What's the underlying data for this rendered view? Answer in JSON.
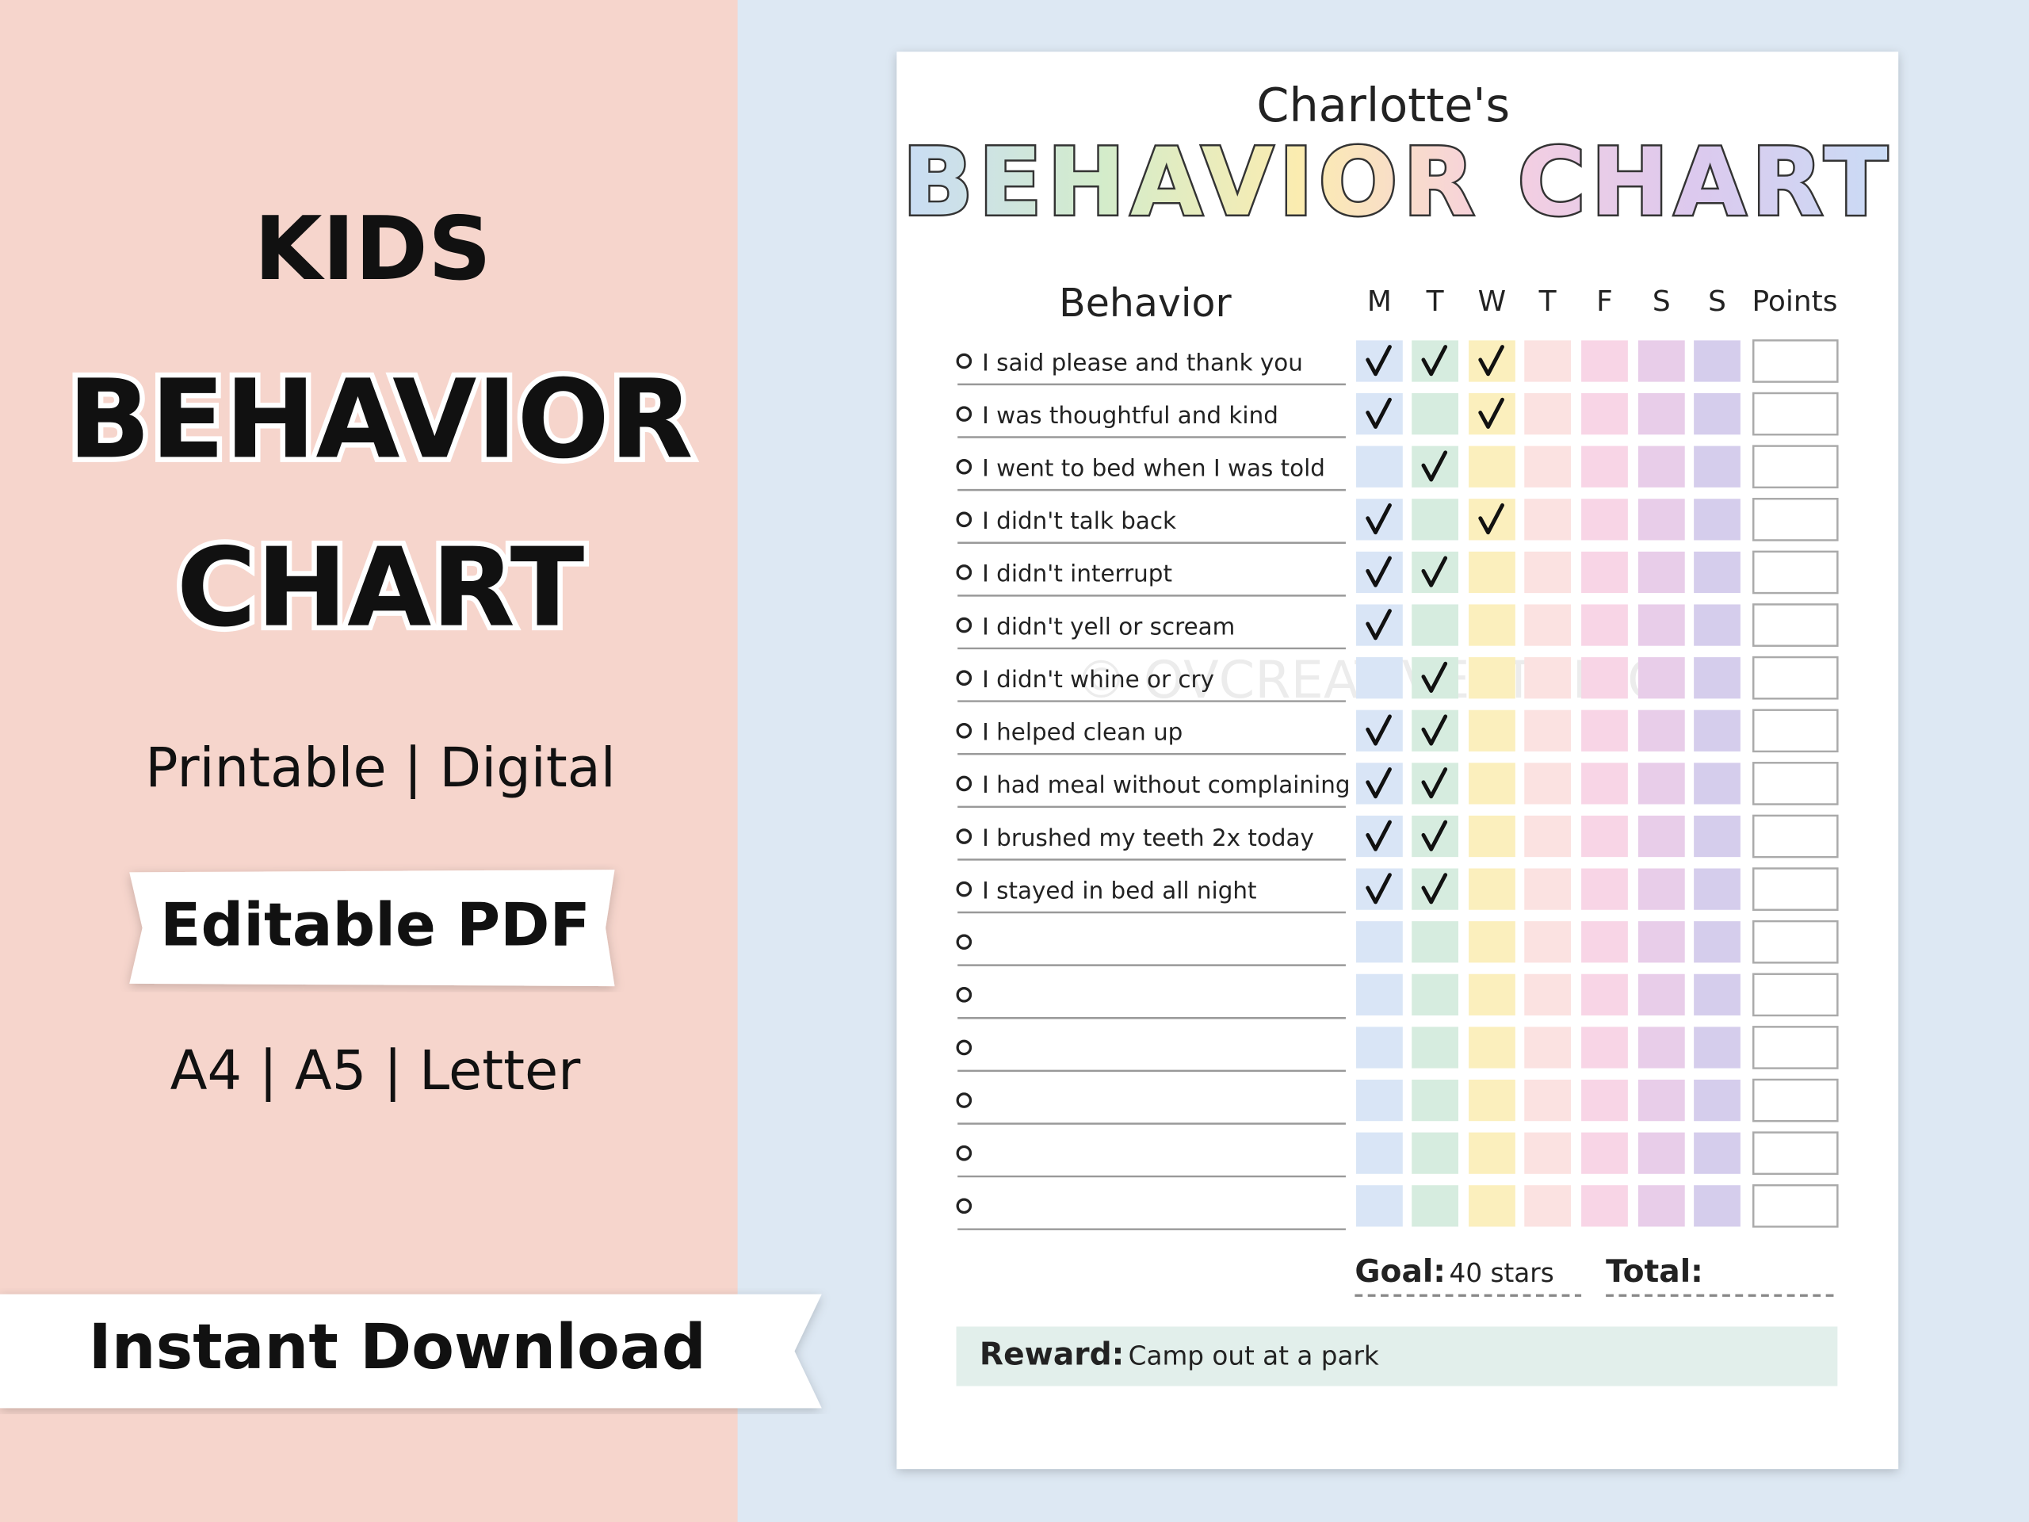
{
  "left_panel": {
    "kicker": "KIDS",
    "title_lines": [
      "BEHAVIOR",
      "CHART"
    ],
    "formats": "Printable | Digital",
    "badge": "Editable PDF",
    "sizes": "A4 | A5 | Letter",
    "banner": "Instant Download"
  },
  "chart_sheet": {
    "owner": "Charlotte's",
    "title": "BEHAVIOR CHART",
    "behavior_header": "Behavior",
    "days": [
      "M",
      "T",
      "W",
      "T",
      "F",
      "S",
      "S"
    ],
    "day_colors": [
      "#d9e5f6",
      "#d6ecdf",
      "#fbefbd",
      "#fbe2e1",
      "#f8d5e6",
      "#e8cde9",
      "#d5cdec"
    ],
    "points_header": "Points",
    "rows": [
      {
        "label": "I said please and thank you",
        "checks": [
          true,
          true,
          true,
          false,
          false,
          false,
          false
        ]
      },
      {
        "label": "I was thoughtful and kind",
        "checks": [
          true,
          false,
          true,
          false,
          false,
          false,
          false
        ]
      },
      {
        "label": "I went to bed when I was told",
        "checks": [
          false,
          true,
          false,
          false,
          false,
          false,
          false
        ]
      },
      {
        "label": "I didn't talk back",
        "checks": [
          true,
          false,
          true,
          false,
          false,
          false,
          false
        ]
      },
      {
        "label": "I didn't interrupt",
        "checks": [
          true,
          true,
          false,
          false,
          false,
          false,
          false
        ]
      },
      {
        "label": "I didn't yell or scream",
        "checks": [
          true,
          false,
          false,
          false,
          false,
          false,
          false
        ]
      },
      {
        "label": "I didn't whine or cry",
        "checks": [
          false,
          true,
          false,
          false,
          false,
          false,
          false
        ]
      },
      {
        "label": "I helped clean up",
        "checks": [
          true,
          true,
          false,
          false,
          false,
          false,
          false
        ]
      },
      {
        "label": "I had meal without complaining",
        "checks": [
          true,
          true,
          false,
          false,
          false,
          false,
          false
        ]
      },
      {
        "label": "I brushed my teeth 2x today",
        "checks": [
          true,
          true,
          false,
          false,
          false,
          false,
          false
        ]
      },
      {
        "label": "I stayed in bed all night",
        "checks": [
          true,
          true,
          false,
          false,
          false,
          false,
          false
        ]
      },
      {
        "label": null,
        "checks": [
          false,
          false,
          false,
          false,
          false,
          false,
          false
        ]
      },
      {
        "label": null,
        "checks": [
          false,
          false,
          false,
          false,
          false,
          false,
          false
        ]
      },
      {
        "label": null,
        "checks": [
          false,
          false,
          false,
          false,
          false,
          false,
          false
        ]
      },
      {
        "label": null,
        "checks": [
          false,
          false,
          false,
          false,
          false,
          false,
          false
        ]
      },
      {
        "label": null,
        "checks": [
          false,
          false,
          false,
          false,
          false,
          false,
          false
        ]
      },
      {
        "label": null,
        "checks": [
          false,
          false,
          false,
          false,
          false,
          false,
          false
        ]
      }
    ],
    "goal_label": "Goal:",
    "goal_value": "40 stars",
    "total_label": "Total:",
    "reward_label": "Reward:",
    "reward_value": "Camp out at a park",
    "watermark": "© OVCREATIVESTUDIO"
  }
}
